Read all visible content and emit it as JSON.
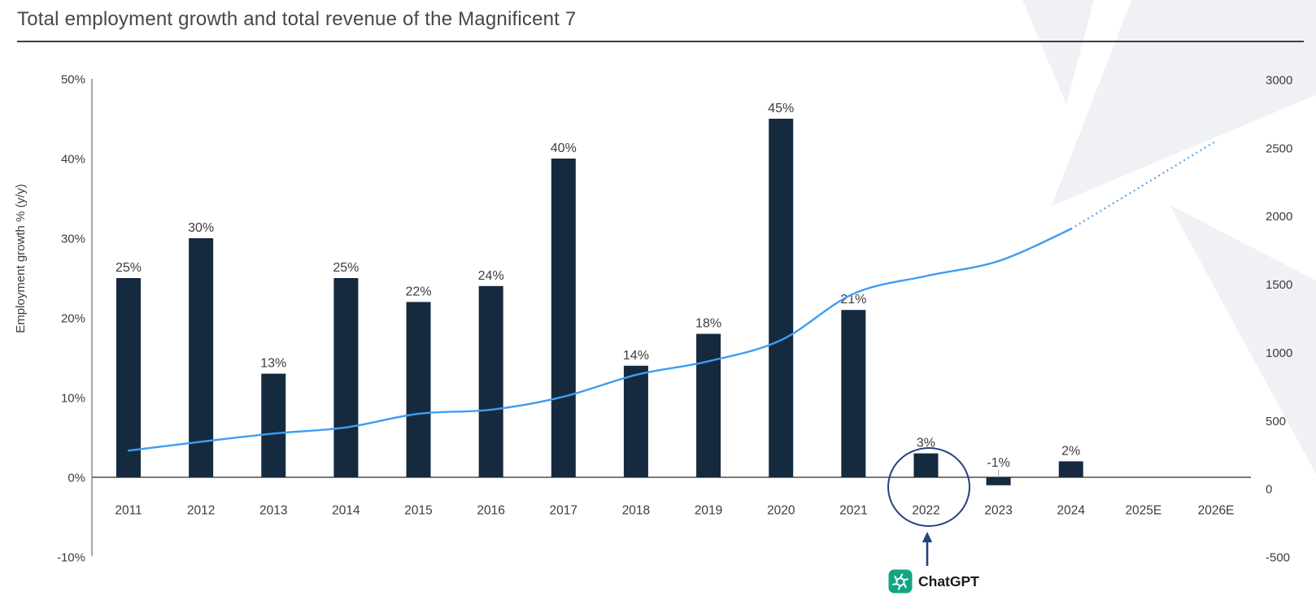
{
  "title": "Total employment growth and total revenue of the Magnificent 7",
  "chart_data": {
    "type": "combo-bar-line",
    "categories": [
      "2011",
      "2012",
      "2013",
      "2014",
      "2015",
      "2016",
      "2017",
      "2018",
      "2019",
      "2020",
      "2021",
      "2022",
      "2023",
      "2024",
      "2025E",
      "2026E"
    ],
    "series": [
      {
        "name": "Employment growth % (y/y)",
        "type": "bar",
        "axis": "left",
        "values": [
          25,
          30,
          13,
          25,
          22,
          24,
          40,
          14,
          18,
          45,
          21,
          3,
          -1,
          2,
          null,
          null
        ],
        "labels": [
          "25%",
          "30%",
          "13%",
          "25%",
          "22%",
          "24%",
          "40%",
          "14%",
          "18%",
          "45%",
          "21%",
          "3%",
          "-1%",
          "2%",
          null,
          null
        ]
      },
      {
        "name": "Total revenue",
        "type": "line",
        "axis": "right",
        "values": [
          280,
          345,
          405,
          450,
          550,
          580,
          675,
          835,
          935,
          1090,
          1430,
          1560,
          1670,
          1905,
          2230,
          2550
        ],
        "solid_until_category": "2024",
        "projected_categories": [
          "2025E",
          "2026E"
        ]
      }
    ],
    "left_axis": {
      "label": "Employment growth % (y/y)",
      "min": -10,
      "max": 50,
      "ticks": [
        {
          "label": "50%",
          "value": 50
        },
        {
          "label": "40%",
          "value": 40
        },
        {
          "label": "30%",
          "value": 30
        },
        {
          "label": "20%",
          "value": 20
        },
        {
          "label": "10%",
          "value": 10
        },
        {
          "label": "0%",
          "value": 0
        },
        {
          "label": "-10%",
          "value": -10
        }
      ]
    },
    "right_axis": {
      "min": -500,
      "max": 3000,
      "ticks": [
        {
          "label": "3000",
          "value": 3000
        },
        {
          "label": "2500",
          "value": 2500
        },
        {
          "label": "2000",
          "value": 2000
        },
        {
          "label": "1500",
          "value": 1500
        },
        {
          "label": "1000",
          "value": 1000
        },
        {
          "label": "500",
          "value": 500
        },
        {
          "label": "0",
          "value": 0
        },
        {
          "label": "-500",
          "value": -500
        }
      ]
    },
    "grid": false,
    "legend": "none"
  },
  "annotation": {
    "target_category": "2022",
    "label": "ChatGPT",
    "icon": "chatgpt-logo"
  },
  "colors": {
    "bar": "#152A3E",
    "line": "#3D9DF3",
    "annotation": "#27417E",
    "chatgpt_green": "#12A584",
    "text": "#3C3C3C",
    "title": "#47474C",
    "rule": "#3F3F3F",
    "axis_line": "#6E6E6E",
    "baseline": "#4F4F4F",
    "leader": "#B5B5B5",
    "label_dark": "#1A1A1A",
    "watermark": "#EFF1F5"
  }
}
